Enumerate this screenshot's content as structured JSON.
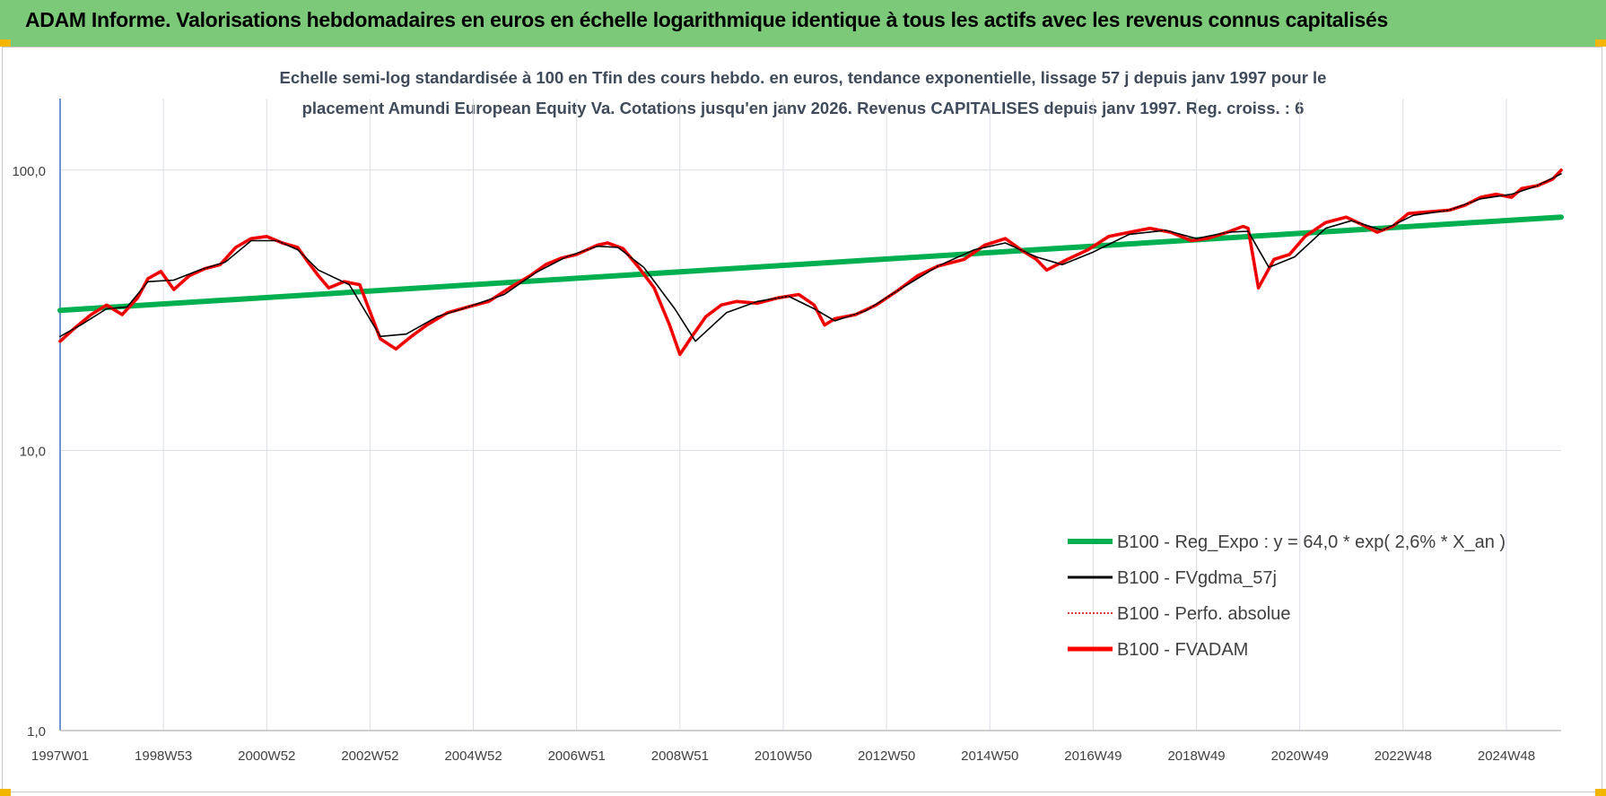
{
  "header": {
    "title": "ADAM Informe. Valorisations hebdomadaires en euros en échelle logarithmique identique à tous les actifs avec les revenus connus capitalisés"
  },
  "colors": {
    "banner": "#7cc97a",
    "regression": "#00b050",
    "moving_average": "#000000",
    "perfo": "#c00000",
    "fvadam": "#ff0000",
    "grid": "#d9dde3",
    "corner": "#f2b600"
  },
  "chart_data": {
    "type": "line",
    "title_line1": "Echelle semi-log standardisée à 100 en Tfin des cours hebdo. en euros, tendance exponentielle, lissage 57 j depuis janv 1997 pour le",
    "title_line2": "placement Amundi European Equity Va. Cotations jusqu'en janv 2026. Revenus CAPITALISES depuis janv 1997. Reg. croiss. : 6",
    "y_scale": "log",
    "ylim": [
      1,
      180
    ],
    "y_ticks": [
      {
        "value": 1,
        "label": "1,0"
      },
      {
        "value": 10,
        "label": "10,0"
      },
      {
        "value": 100,
        "label": "100,0"
      }
    ],
    "x_tick_labels": [
      "1997W01",
      "1998W53",
      "2000W52",
      "2002W52",
      "2004W52",
      "2006W51",
      "2008W51",
      "2010W50",
      "2012W50",
      "2014W50",
      "2016W49",
      "2018W49",
      "2020W49",
      "2022W48",
      "2024W48"
    ],
    "x_range": [
      "1997W01",
      "2026W04"
    ],
    "grid": true,
    "legend_position": "bottom-right",
    "legend": [
      "B100 - Reg_Expo : y = 64,0 * exp( 2,6% *  X_an )",
      "B100 - FVgdma_57j",
      "B100 - Perfo. absolue",
      "B100 - FVADAM"
    ],
    "series": [
      {
        "name": "B100 - Reg_Expo : y = 64,0 * exp( 2,6% *  X_an )",
        "style": "line-thick",
        "x": [
          1997.0,
          2026.06
        ],
        "y": [
          31.6,
          68.0
        ]
      },
      {
        "name": "B100 - FVADAM",
        "style": "line-thick",
        "x": [
          1997.0,
          1997.3,
          1997.6,
          1997.9,
          1998.2,
          1998.5,
          1998.7,
          1998.95,
          1999.2,
          1999.5,
          1999.8,
          2000.1,
          2000.4,
          2000.7,
          2001.0,
          2001.3,
          2001.6,
          2001.8,
          2002.0,
          2002.2,
          2002.5,
          2002.8,
          2003.2,
          2003.5,
          2003.8,
          2004.1,
          2004.5,
          2004.9,
          2005.3,
          2005.7,
          2006.1,
          2006.4,
          2006.7,
          2007.0,
          2007.4,
          2007.6,
          2007.9,
          2008.2,
          2008.5,
          2008.8,
          2009.0,
          2009.2,
          2009.5,
          2009.8,
          2010.1,
          2010.5,
          2010.9,
          2011.3,
          2011.6,
          2011.8,
          2012.0,
          2012.4,
          2012.8,
          2013.2,
          2013.6,
          2014.0,
          2014.5,
          2014.9,
          2015.3,
          2015.6,
          2015.9,
          2016.1,
          2016.5,
          2016.9,
          2017.3,
          2017.7,
          2018.1,
          2018.5,
          2018.9,
          2019.2,
          2019.6,
          2019.9,
          2020.0,
          2020.2,
          2020.5,
          2020.8,
          2021.1,
          2021.5,
          2021.9,
          2022.2,
          2022.5,
          2022.8,
          2023.1,
          2023.5,
          2023.9,
          2024.2,
          2024.5,
          2024.8,
          2025.1,
          2025.3,
          2025.6,
          2025.9,
          2026.06
        ],
        "y": [
          24.5,
          27.5,
          30.5,
          33.0,
          30.5,
          35.0,
          41.0,
          43.5,
          37.5,
          42.0,
          44.5,
          46.0,
          53.0,
          57.0,
          58.0,
          55.0,
          53.0,
          47.0,
          42.0,
          38.0,
          40.0,
          39.0,
          25.0,
          23.0,
          25.5,
          28.0,
          31.0,
          32.5,
          34.0,
          38.0,
          42.0,
          46.0,
          48.5,
          50.0,
          54.0,
          55.0,
          52.5,
          45.0,
          38.0,
          28.0,
          22.0,
          25.0,
          30.0,
          33.0,
          34.0,
          33.5,
          35.0,
          36.0,
          33.0,
          28.0,
          29.5,
          30.5,
          33.0,
          37.0,
          42.0,
          45.5,
          48.0,
          54.0,
          57.0,
          52.0,
          48.0,
          44.0,
          48.0,
          52.0,
          58.0,
          60.0,
          62.0,
          60.0,
          56.0,
          57.0,
          60.0,
          63.0,
          62.0,
          38.0,
          48.0,
          50.0,
          58.0,
          65.0,
          68.0,
          64.0,
          60.0,
          63.0,
          70.0,
          71.0,
          72.0,
          75.0,
          80.0,
          82.0,
          80.0,
          86.0,
          88.0,
          93.0,
          100.0
        ]
      },
      {
        "name": "B100 - FVgdma_57j",
        "style": "line-thin",
        "x": [
          1997.0,
          1997.4,
          1997.9,
          1998.3,
          1998.7,
          1999.2,
          1999.7,
          2000.2,
          2000.7,
          2001.2,
          2001.6,
          2002.0,
          2002.6,
          2003.2,
          2003.7,
          2004.3,
          2004.9,
          2005.6,
          2006.2,
          2006.8,
          2007.4,
          2007.8,
          2008.3,
          2008.9,
          2009.3,
          2009.9,
          2010.5,
          2011.1,
          2011.6,
          2012.0,
          2012.6,
          2013.3,
          2014.0,
          2014.7,
          2015.3,
          2015.9,
          2016.4,
          2017.0,
          2017.7,
          2018.4,
          2019.0,
          2019.6,
          2020.0,
          2020.4,
          2020.9,
          2021.5,
          2022.0,
          2022.6,
          2023.2,
          2023.9,
          2024.5,
          2025.1,
          2025.6,
          2026.06
        ],
        "y": [
          25.5,
          28.0,
          32.0,
          32.5,
          40.0,
          40.5,
          44.0,
          47.0,
          56.0,
          56.0,
          52.0,
          44.0,
          39.0,
          25.5,
          26.0,
          30.0,
          32.5,
          36.0,
          43.0,
          49.0,
          53.5,
          53.0,
          45.0,
          32.0,
          24.5,
          31.0,
          34.0,
          35.5,
          32.0,
          29.0,
          31.5,
          38.0,
          45.5,
          52.0,
          55.0,
          49.0,
          46.0,
          51.0,
          59.0,
          61.0,
          57.0,
          60.0,
          60.5,
          45.0,
          49.0,
          62.0,
          66.0,
          61.0,
          69.0,
          72.0,
          79.0,
          82.0,
          88.0,
          97.0
        ]
      }
    ]
  }
}
